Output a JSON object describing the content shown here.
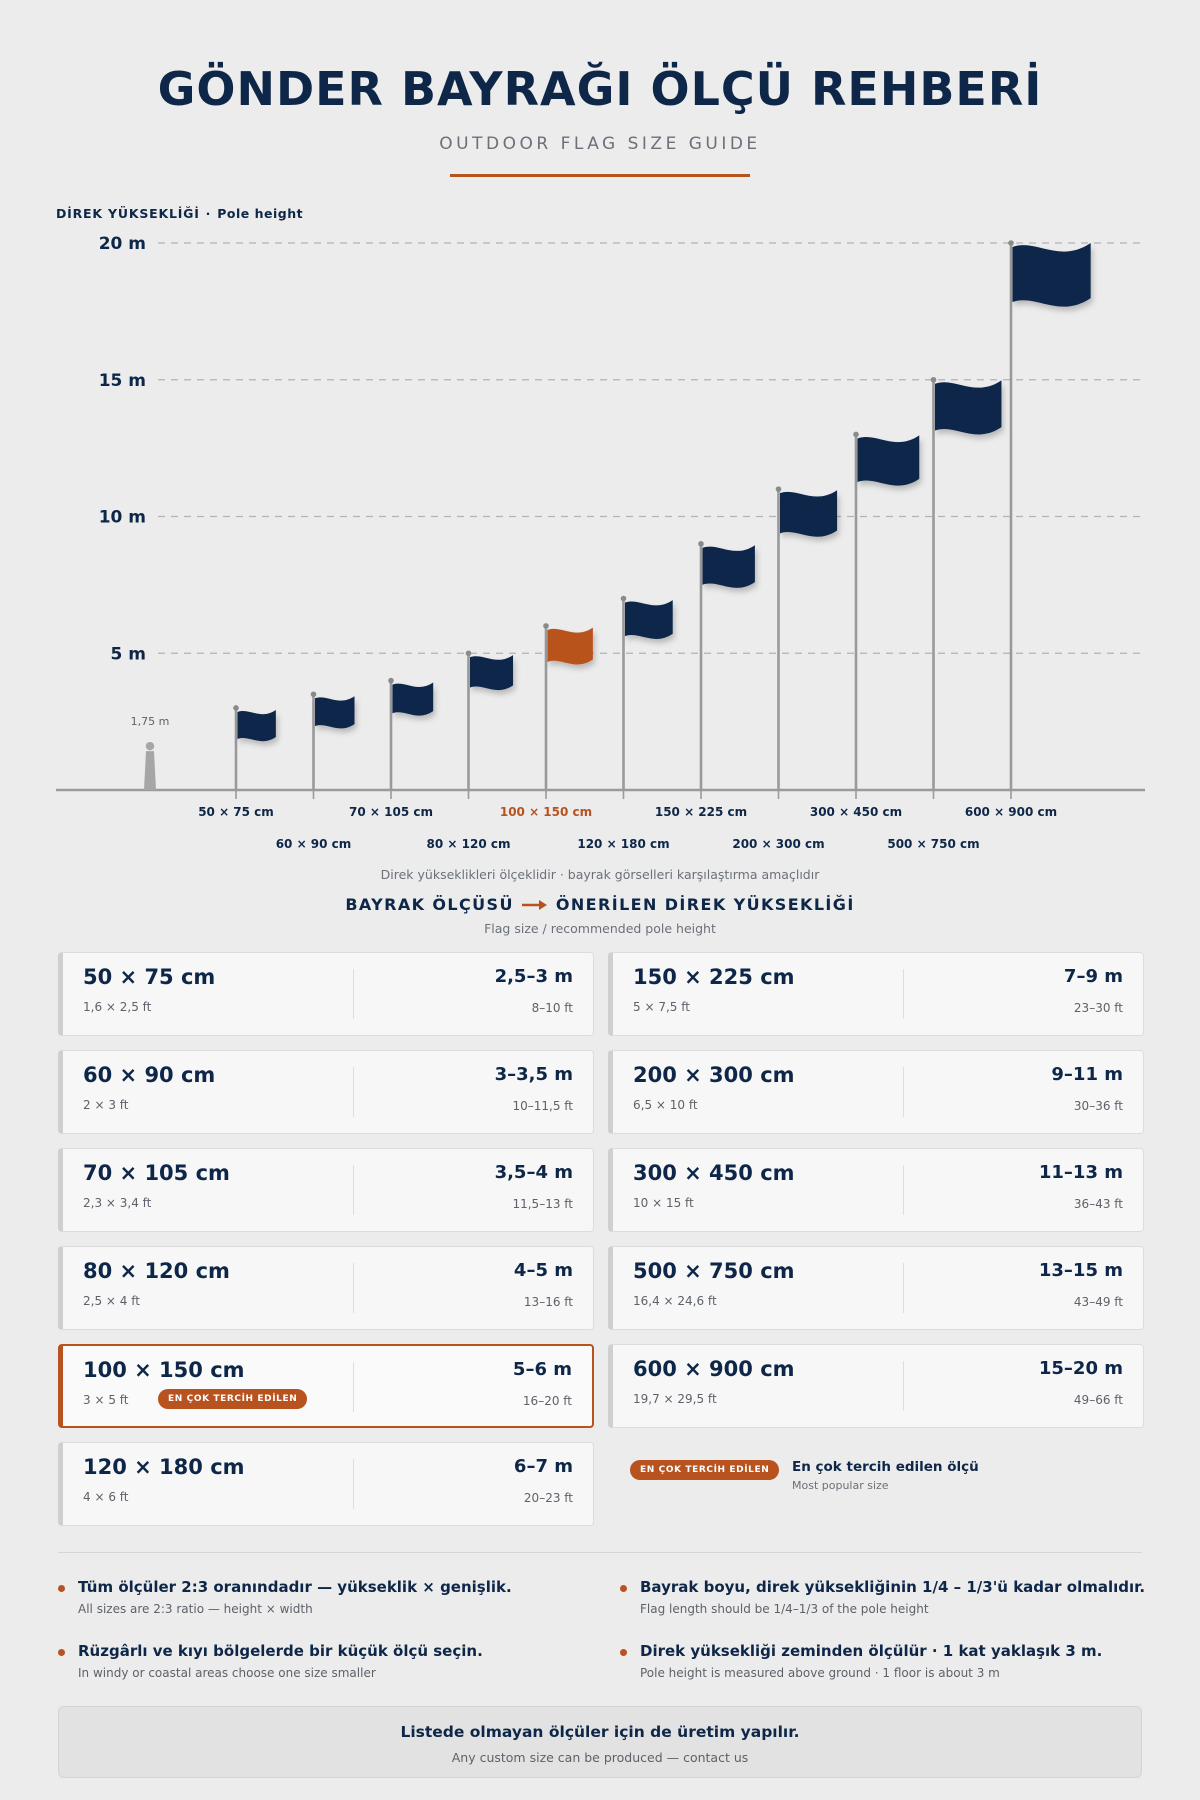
{
  "header": {
    "title": "GÖNDER BAYRAĞI ÖLÇÜ REHBERİ",
    "subtitle": "OUTDOOR FLAG SIZE GUIDE"
  },
  "chart_data": {
    "type": "bar",
    "ylabel": "DİREK YÜKSEKLİĞİ",
    "ylabel_en": "Pole height",
    "ylim": [
      0,
      20
    ],
    "y_ticks": [
      {
        "value": 5,
        "label": "5 m"
      },
      {
        "value": 10,
        "label": "10 m"
      },
      {
        "value": 15,
        "label": "15 m"
      },
      {
        "value": 20,
        "label": "20 m"
      }
    ],
    "grid": true,
    "reference": {
      "label": "1,75 m",
      "value": 1.75
    },
    "categories": [
      "50 × 75 cm",
      "60 × 90 cm",
      "70 × 105 cm",
      "80 × 120 cm",
      "100 × 150 cm",
      "120 × 180 cm",
      "150 × 225 cm",
      "200 × 300 cm",
      "300 × 450 cm",
      "500 × 750 cm",
      "600 × 900 cm"
    ],
    "values": [
      3,
      3.5,
      4,
      5,
      6,
      7,
      9,
      11,
      13,
      15,
      20
    ],
    "highlight_index": 4,
    "colors": {
      "flag": "#0e2748",
      "highlight": "#b8521f",
      "pole": "#9a9a9a",
      "person": "#a6a6a6"
    },
    "note": "Direk yükseklikleri ölçeklidir · bayrak görselleri karşılaştırma amaçlıdır"
  },
  "section": {
    "left": "BAYRAK ÖLÇÜSÜ",
    "right": "ÖNERİLEN DİREK YÜKSEKLİĞİ",
    "sub": "Flag size / recommended pole height"
  },
  "cards": [
    {
      "size": "50 × 75 cm",
      "ft": "1,6 × 2,5 ft",
      "height": "2,5–3 m",
      "hft": "8–10 ft",
      "featured": false
    },
    {
      "size": "60 × 90 cm",
      "ft": "2 × 3 ft",
      "height": "3–3,5 m",
      "hft": "10–11,5 ft",
      "featured": false
    },
    {
      "size": "70 × 105 cm",
      "ft": "2,3 × 3,4 ft",
      "height": "3,5–4 m",
      "hft": "11,5–13 ft",
      "featured": false
    },
    {
      "size": "80 × 120 cm",
      "ft": "2,5 × 4 ft",
      "height": "4–5 m",
      "hft": "13–16 ft",
      "featured": false
    },
    {
      "size": "100 × 150 cm",
      "ft": "3 × 5 ft",
      "height": "5–6 m",
      "hft": "16–20 ft",
      "featured": true
    },
    {
      "size": "120 × 180 cm",
      "ft": "4 × 6 ft",
      "height": "6–7 m",
      "hft": "20–23 ft",
      "featured": false
    },
    {
      "size": "150 × 225 cm",
      "ft": "5 × 7,5 ft",
      "height": "7–9 m",
      "hft": "23–30 ft",
      "featured": false
    },
    {
      "size": "200 × 300 cm",
      "ft": "6,5 × 10 ft",
      "height": "9–11 m",
      "hft": "30–36 ft",
      "featured": false
    },
    {
      "size": "300 × 450 cm",
      "ft": "10 × 15 ft",
      "height": "11–13 m",
      "hft": "36–43 ft",
      "featured": false
    },
    {
      "size": "500 × 750 cm",
      "ft": "16,4 × 24,6 ft",
      "height": "13–15 m",
      "hft": "43–49 ft",
      "featured": false
    },
    {
      "size": "600 × 900 cm",
      "ft": "19,7 × 29,5 ft",
      "height": "15–20 m",
      "hft": "49–66 ft",
      "featured": false
    }
  ],
  "badge_label": "EN ÇOK TERCİH EDİLEN",
  "legend": {
    "text": "En çok tercih edilen ölçü",
    "sub": "Most popular size"
  },
  "notes": [
    {
      "text": "Tüm ölçüler 2:3 oranındadır — yükseklik × genişlik.",
      "sub": "All sizes are 2:3 ratio — height × width"
    },
    {
      "text": "Bayrak boyu, direk yüksekliğinin 1/4 – 1/3'ü kadar olmalıdır.",
      "sub": "Flag length should be 1/4–1/3 of the pole height"
    },
    {
      "text": "Rüzgârlı ve kıyı bölgelerde bir küçük ölçü seçin.",
      "sub": "In windy or coastal areas choose one size smaller"
    },
    {
      "text": "Direk yüksekliği zeminden ölçülür · 1 kat yaklaşık 3 m.",
      "sub": "Pole height is measured above ground · 1 floor is about 3 m"
    }
  ],
  "footer": {
    "text": "Listede olmayan ölçüler için de üretim yapılır.",
    "sub": "Any custom size can be produced — contact us"
  }
}
